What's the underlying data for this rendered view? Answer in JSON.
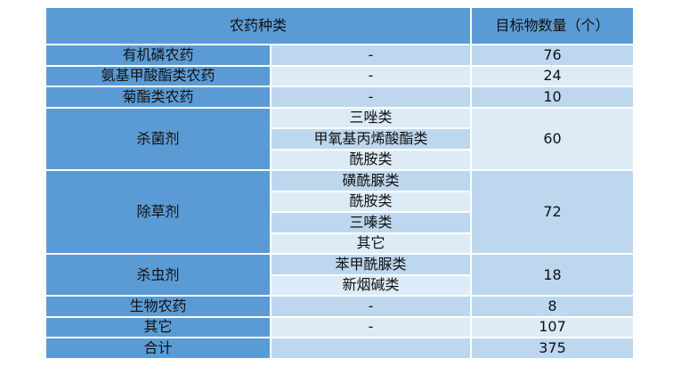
{
  "header": {
    "category": "农药种类",
    "count": "目标物数量（个）"
  },
  "rows": [
    {
      "category": "有机磷农药",
      "sub": [
        "-"
      ],
      "count": "76"
    },
    {
      "category": "氨基甲酸酯类农药",
      "sub": [
        "-"
      ],
      "count": "24"
    },
    {
      "category": "菊酯类农药",
      "sub": [
        "-"
      ],
      "count": "10"
    },
    {
      "category": "杀菌剂",
      "sub": [
        "三唑类",
        "甲氧基丙烯酸酯类",
        "酰胺类"
      ],
      "count": "60"
    },
    {
      "category": "除草剂",
      "sub": [
        "磺酰脲类",
        "酰胺类",
        "三嗪类",
        "其它"
      ],
      "count": "72"
    },
    {
      "category": "杀虫剂",
      "sub": [
        "苯甲酰脲类",
        "新烟碱类"
      ],
      "count": "18"
    },
    {
      "category": "生物农药",
      "sub": [
        "-"
      ],
      "count": "8"
    },
    {
      "category": "其它",
      "sub": [
        "-"
      ],
      "count": "107"
    },
    {
      "category": "合计",
      "sub": [
        ""
      ],
      "count": "375"
    }
  ],
  "colors": {
    "header": "#5b9bd5",
    "band_dark": "#bdd7ee",
    "band_light": "#ddebf7"
  }
}
